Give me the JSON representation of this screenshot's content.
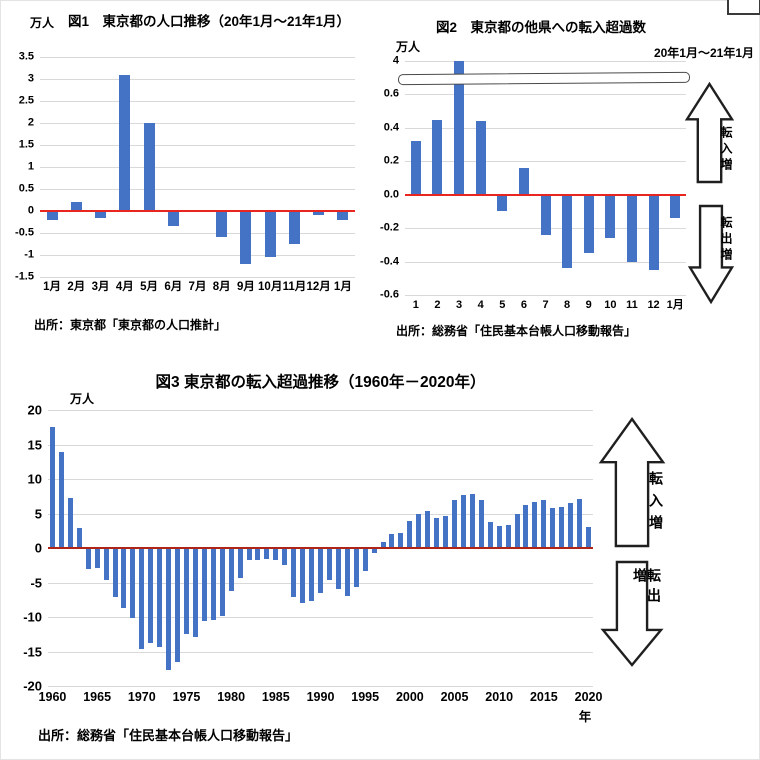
{
  "page": {
    "background": "#ffffff"
  },
  "colors": {
    "bar": "#4472c4",
    "gridline": "#d9d9d9",
    "zero_line_fig12": "#e8251f",
    "zero_line_fig3": "#b02418"
  },
  "chart_data": [
    {
      "id": "fig1",
      "type": "bar",
      "title": "図1　東京都の人口推移（20年1月～21年1月）",
      "unit_label": "万人",
      "source": "出所：東京都「東京都の人口推計」",
      "categories": [
        "1月",
        "2月",
        "3月",
        "4月",
        "5月",
        "6月",
        "7月",
        "8月",
        "9月",
        "10月",
        "11月",
        "12月",
        "1月"
      ],
      "values": [
        -0.2,
        0.2,
        -0.15,
        3.1,
        2.0,
        -0.35,
        0.03,
        -0.6,
        -1.2,
        -1.05,
        -0.75,
        -0.1,
        -0.2
      ],
      "ylim": [
        -1.5,
        3.5
      ],
      "yticks": [
        {
          "label": "3.5",
          "value": 3.5
        },
        {
          "label": "3",
          "value": 3
        },
        {
          "label": "2.5",
          "value": 2.5
        },
        {
          "label": "2",
          "value": 2
        },
        {
          "label": "1.5",
          "value": 1.5
        },
        {
          "label": "1",
          "value": 1
        },
        {
          "label": "0.5",
          "value": 0.5
        },
        {
          "label": "0",
          "value": 0
        },
        {
          "label": "-0.5",
          "value": -0.5
        },
        {
          "label": "-1",
          "value": -1
        },
        {
          "label": "-1.5",
          "value": -1.5
        }
      ],
      "zero_line_color": "#e8251f",
      "grid": true,
      "legend": "none"
    },
    {
      "id": "fig2",
      "type": "bar",
      "title": "図2　東京都の他県への転入超過数",
      "subtitle": "20年1月～21年1月",
      "unit_label": "万人",
      "source": "出所：総務省「住民基本台帳人口移動報告」",
      "categories": [
        "1",
        "2",
        "3",
        "4",
        "5",
        "6",
        "7",
        "8",
        "9",
        "10",
        "11",
        "12",
        "1月"
      ],
      "values": [
        0.32,
        0.45,
        4.0,
        0.44,
        -0.1,
        0.16,
        -0.24,
        -0.44,
        -0.35,
        -0.26,
        -0.4,
        -0.45,
        -0.14
      ],
      "ylim": [
        -0.6,
        4.0
      ],
      "plot_ylim": [
        -0.6,
        0.8
      ],
      "yticks": [
        {
          "label": "4",
          "value": 4,
          "plot_at": 0.8
        },
        {
          "label": "0.6",
          "value": 0.6
        },
        {
          "label": "0.4",
          "value": 0.4
        },
        {
          "label": "0.2",
          "value": 0.2
        },
        {
          "label": "0.0",
          "value": 0
        },
        {
          "label": "-0.2",
          "value": -0.2
        },
        {
          "label": "-0.4",
          "value": -0.4
        },
        {
          "label": "-0.6",
          "value": -0.6
        }
      ],
      "axis_break": {
        "plot_at": 0.7,
        "note": "y-axis broken between 0.6 and 4"
      },
      "zero_line_color": "#e8251f",
      "grid": true,
      "annotations": {
        "up_arrow": "転入増",
        "down_arrow": "転出増"
      }
    },
    {
      "id": "fig3",
      "type": "bar",
      "title": "図3 東京都の転入超過推移（1960年－2020年）",
      "unit_label": "万人",
      "x_axis_label": "年",
      "source": "出所：総務省「住民基本台帳人口移動報告」",
      "categories": [
        "1960",
        "1961",
        "1962",
        "1963",
        "1964",
        "1965",
        "1966",
        "1967",
        "1968",
        "1969",
        "1970",
        "1971",
        "1972",
        "1973",
        "1974",
        "1975",
        "1976",
        "1977",
        "1978",
        "1979",
        "1980",
        "1981",
        "1982",
        "1983",
        "1984",
        "1985",
        "1986",
        "1987",
        "1988",
        "1989",
        "1990",
        "1991",
        "1992",
        "1993",
        "1994",
        "1995",
        "1996",
        "1997",
        "1998",
        "1999",
        "2000",
        "2001",
        "2002",
        "2003",
        "2004",
        "2005",
        "2006",
        "2007",
        "2008",
        "2009",
        "2010",
        "2011",
        "2012",
        "2013",
        "2014",
        "2015",
        "2016",
        "2017",
        "2018",
        "2019",
        "2020"
      ],
      "values": [
        17.5,
        13.9,
        7.3,
        2.9,
        -3.0,
        -2.9,
        -4.7,
        -7.1,
        -8.7,
        -10.1,
        -14.7,
        -13.8,
        -14.4,
        -17.7,
        -16.5,
        -12.5,
        -12.9,
        -10.6,
        -10.5,
        -9.9,
        -6.2,
        -4.3,
        -1.8,
        -1.7,
        -1.6,
        -1.8,
        -2.5,
        -7.1,
        -8.0,
        -7.7,
        -6.5,
        -4.7,
        -6.0,
        -7.0,
        -5.6,
        -3.3,
        -0.7,
        0.9,
        2.0,
        2.2,
        3.9,
        5.0,
        5.3,
        4.3,
        4.7,
        6.9,
        7.7,
        7.8,
        6.9,
        3.7,
        3.2,
        3.4,
        5.0,
        6.3,
        6.6,
        6.9,
        5.8,
        6.0,
        6.5,
        7.1,
        3.1
      ],
      "ylim": [
        -20,
        20
      ],
      "yticks": [
        {
          "label": "20",
          "value": 20
        },
        {
          "label": "15",
          "value": 15
        },
        {
          "label": "10",
          "value": 10
        },
        {
          "label": "5",
          "value": 5
        },
        {
          "label": "0",
          "value": 0
        },
        {
          "label": "-5",
          "value": -5
        },
        {
          "label": "-10",
          "value": -10
        },
        {
          "label": "-15",
          "value": -15
        },
        {
          "label": "-20",
          "value": -20
        }
      ],
      "xtick_step": 5,
      "zero_line_color": "#b02418",
      "grid": true,
      "annotations": {
        "up_arrow": "転入増",
        "down_arrow": "転出増"
      }
    }
  ]
}
